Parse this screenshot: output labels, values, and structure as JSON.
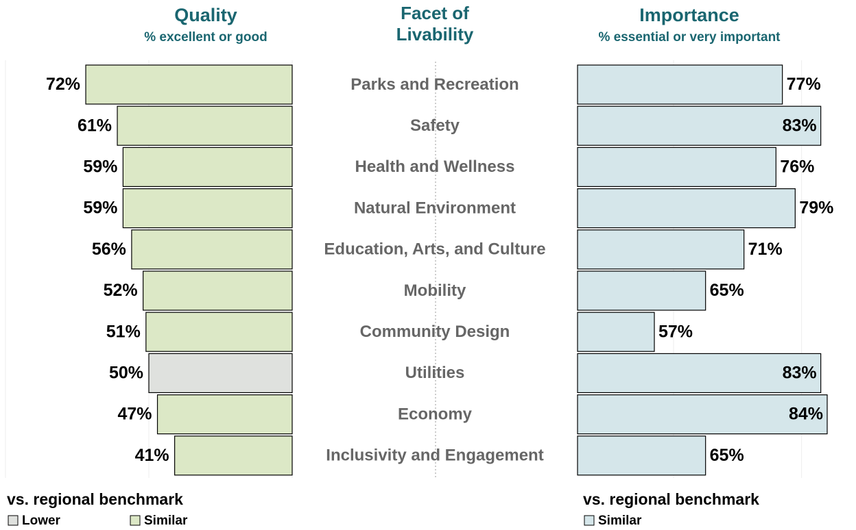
{
  "chart_data": {
    "type": "bar",
    "category_title": "Facet of Livability",
    "categories": [
      "Parks and Recreation",
      "Safety",
      "Health and Wellness",
      "Natural Environment",
      "Education, Arts, and Culture",
      "Mobility",
      "Community Design",
      "Utilities",
      "Economy",
      "Inclusivity and Engagement"
    ],
    "series": [
      {
        "name": "Quality",
        "subtitle": "% excellent or good",
        "values": [
          72,
          61,
          59,
          59,
          56,
          52,
          51,
          50,
          47,
          41
        ],
        "value_labels": [
          "72%",
          "61%",
          "59%",
          "59%",
          "56%",
          "52%",
          "51%",
          "50%",
          "47%",
          "41%"
        ],
        "benchmark": [
          "Similar",
          "Similar",
          "Similar",
          "Similar",
          "Similar",
          "Similar",
          "Similar",
          "Lower",
          "Similar",
          "Similar"
        ],
        "xlim": [
          0,
          100
        ],
        "xticks": [
          0,
          50,
          100
        ],
        "legend_title": "vs. regional benchmark",
        "legend": [
          {
            "name": "Lower",
            "color": "#dfe1de"
          },
          {
            "name": "Similar",
            "color": "#dce8c6"
          }
        ]
      },
      {
        "name": "Importance",
        "subtitle": "% essential or very important",
        "values": [
          77,
          83,
          76,
          79,
          71,
          65,
          57,
          83,
          84,
          65
        ],
        "value_labels": [
          "77%",
          "83%",
          "76%",
          "79%",
          "71%",
          "65%",
          "57%",
          "83%",
          "84%",
          "65%"
        ],
        "benchmark": [
          "Similar",
          "Similar",
          "Similar",
          "Similar",
          "Similar",
          "Similar",
          "Similar",
          "Similar",
          "Similar",
          "Similar"
        ],
        "xlim": [
          45,
          88.5
        ],
        "xticks": [
          60,
          80
        ],
        "legend_title": "vs. regional benchmark",
        "legend": [
          {
            "name": "Similar",
            "color": "#d5e6ea"
          }
        ]
      }
    ],
    "grid": true
  }
}
